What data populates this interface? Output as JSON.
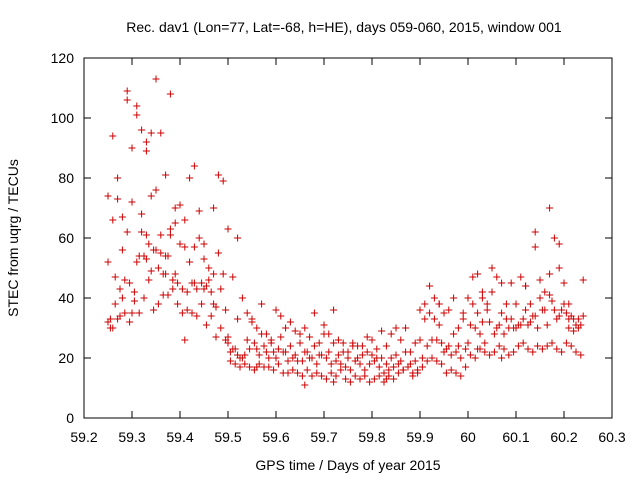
{
  "chart_data": {
    "type": "scatter",
    "title": "Rec. dav1 (Lon=77, Lat=-68, h=HE), days 059-060, 2015, window 001",
    "xlabel": "GPS time / Days of year 2015",
    "ylabel": "STEC from uqrg / TECUs",
    "xlim": [
      59.2,
      60.3
    ],
    "ylim": [
      0,
      120
    ],
    "xticks": [
      59.2,
      59.3,
      59.4,
      59.5,
      59.6,
      59.7,
      59.8,
      59.9,
      60,
      60.1,
      60.2,
      60.3
    ],
    "xtick_labels": [
      "59.2",
      "59.3",
      "59.4",
      "59.5",
      "59.6",
      "59.7",
      "59.8",
      "59.9",
      "60",
      "60.1",
      "60.2",
      "60.3"
    ],
    "yticks": [
      0,
      20,
      40,
      60,
      80,
      100,
      120
    ],
    "ytick_labels": [
      "0",
      "20",
      "40",
      "60",
      "80",
      "100",
      "120"
    ],
    "grid": false,
    "legend": "none",
    "marker": "plus",
    "marker_color": "#cc0000",
    "series": [
      {
        "x": [
          59.25,
          59.26,
          59.27,
          59.28,
          59.29,
          59.3,
          59.31,
          59.32,
          59.33,
          59.34,
          59.35,
          59.36,
          59.37,
          59.38,
          59.39,
          59.4,
          59.41,
          59.42,
          59.43,
          59.44,
          59.45,
          59.46,
          59.47,
          59.48,
          59.49,
          59.5,
          59.51,
          59.52,
          59.53,
          59.54,
          59.55,
          59.56,
          59.57,
          59.58,
          59.59,
          59.6,
          59.61,
          59.62,
          59.63,
          59.64,
          59.65,
          59.66,
          59.67,
          59.68,
          59.69,
          59.7,
          59.71,
          59.72,
          59.73,
          59.74,
          59.75,
          59.76,
          59.77,
          59.78,
          59.79,
          59.8,
          59.81,
          59.82,
          59.83,
          59.84,
          59.85,
          59.86,
          59.87,
          59.88,
          59.89,
          59.9,
          59.91,
          59.92,
          59.93,
          59.94,
          59.95,
          59.96,
          59.97,
          59.98,
          59.99,
          60.0,
          60.01,
          60.02,
          60.03,
          60.04,
          60.05,
          60.06,
          60.07,
          60.08,
          60.09,
          60.1,
          60.11,
          60.12,
          60.13,
          60.14,
          60.15,
          60.16,
          60.17,
          60.18,
          60.19,
          60.2,
          60.21,
          60.22,
          60.23,
          60.24,
          59.25,
          59.26,
          59.27,
          59.28,
          59.29,
          59.3,
          59.31,
          59.32,
          59.33,
          59.34,
          59.35,
          59.36,
          59.37,
          59.38,
          59.39,
          59.4,
          59.41,
          59.42,
          59.43,
          59.44,
          59.45,
          59.46,
          59.47,
          59.48,
          59.49,
          59.5,
          59.51,
          59.52,
          59.53,
          59.54,
          59.55,
          59.56,
          59.57,
          59.58,
          59.59,
          59.6,
          59.61,
          59.62,
          59.63,
          59.64,
          59.65,
          59.66,
          59.67,
          59.68,
          59.69,
          59.7,
          59.71,
          59.72,
          59.73,
          59.74,
          59.75,
          59.76,
          59.77,
          59.78,
          59.79,
          59.8,
          59.81,
          59.82,
          59.83,
          59.84,
          59.85,
          59.86,
          59.87,
          59.88,
          59.89,
          59.9,
          59.91,
          59.92,
          59.93,
          59.94,
          59.95,
          59.96,
          59.97,
          59.98,
          59.99,
          60.0,
          60.01,
          60.02,
          60.03,
          60.04,
          60.05,
          60.06,
          60.07,
          60.08,
          60.09,
          60.1,
          60.11,
          60.12,
          60.13,
          60.14,
          60.15,
          60.16,
          60.17,
          60.18,
          60.19,
          60.2,
          60.21,
          60.22,
          60.23,
          60.24,
          59.255,
          59.265,
          59.275,
          59.285,
          59.295,
          59.305,
          59.315,
          59.325,
          59.335,
          59.345,
          59.355,
          59.365,
          59.375,
          59.385,
          59.395,
          59.405,
          59.415,
          59.425,
          59.435,
          59.445,
          59.455,
          59.465,
          59.475,
          59.485,
          59.495,
          59.505,
          59.515,
          59.525,
          59.535,
          59.545,
          59.555,
          59.565,
          59.575,
          59.585,
          59.595,
          59.605,
          59.615,
          59.625,
          59.635,
          59.645,
          59.655,
          59.665,
          59.675,
          59.685,
          59.695,
          59.705,
          59.715,
          59.725,
          59.735,
          59.745,
          59.755,
          59.765,
          59.775,
          59.785,
          59.795,
          59.805,
          59.815,
          59.825,
          59.835,
          59.845,
          59.855,
          59.865,
          59.875,
          59.885,
          59.895,
          59.905,
          59.915,
          59.925,
          59.935,
          59.945,
          59.955,
          59.965,
          59.975,
          59.985,
          59.995,
          60.005,
          60.015,
          60.025,
          60.035,
          60.045,
          60.055,
          60.065,
          60.075,
          60.085,
          60.095,
          60.105,
          60.115,
          60.125,
          60.135,
          60.145,
          60.155,
          60.165,
          60.175,
          60.185,
          60.195,
          60.205,
          60.215,
          60.225,
          60.235,
          59.255,
          59.265,
          59.275,
          59.285,
          59.295,
          59.305,
          59.315,
          59.325,
          59.335,
          59.345,
          59.355,
          59.365,
          59.375,
          59.385,
          59.395,
          59.405,
          59.415,
          59.425,
          59.435,
          59.445,
          59.455,
          59.465,
          59.475,
          59.485,
          59.495,
          59.505,
          59.515,
          59.525,
          59.535,
          59.545,
          59.555,
          59.565,
          59.575,
          59.585,
          59.595,
          59.605,
          59.615,
          59.625,
          59.635,
          59.645,
          59.655,
          59.665,
          59.675,
          59.685,
          59.695,
          59.705,
          59.715,
          59.725,
          59.735,
          59.745,
          59.755,
          59.765,
          59.775,
          59.785,
          59.795,
          59.805,
          59.815,
          59.825,
          59.835,
          59.845,
          59.855,
          59.865,
          59.875,
          59.885,
          59.895,
          59.905,
          59.915,
          59.925,
          59.935,
          59.945,
          59.955,
          59.965,
          59.975,
          59.985,
          59.995,
          60.005,
          60.015,
          60.025,
          60.035,
          60.045,
          60.055,
          60.065,
          60.075,
          60.085,
          60.095,
          60.105,
          60.115,
          60.125,
          60.135,
          60.145,
          60.155,
          60.165,
          60.175,
          60.185,
          60.195,
          60.205,
          60.215,
          60.225,
          60.235,
          59.29,
          59.31,
          59.33,
          59.35,
          59.37,
          59.39,
          59.32,
          59.36,
          59.34,
          59.38,
          59.33,
          59.3,
          59.28,
          59.27,
          59.26,
          59.41,
          59.43,
          59.45,
          59.47,
          59.5,
          59.52,
          59.56,
          59.25,
          60.17,
          60.19,
          60.14,
          60.21,
          60.12,
          60.03,
          59.94,
          60.02,
          60.07,
          59.83,
          59.66,
          59.72
        ],
        "y": [
          74,
          94,
          80,
          67,
          109,
          90,
          104,
          96,
          92,
          95,
          113,
          95,
          81,
          108,
          65,
          71,
          66,
          80,
          84,
          69,
          58,
          50,
          70,
          81,
          79,
          63,
          47,
          60,
          40,
          35,
          33,
          30,
          38,
          28,
          25,
          36,
          34,
          30,
          32,
          29,
          28,
          30,
          27,
          35,
          25,
          31,
          28,
          36,
          26,
          25,
          22,
          25,
          24,
          21,
          27,
          26,
          23,
          29,
          24,
          28,
          30,
          26,
          30,
          22,
          19,
          36,
          38,
          44,
          40,
          38,
          35,
          36,
          40,
          30,
          33,
          25,
          47,
          48,
          40,
          38,
          50,
          47,
          45,
          38,
          45,
          30,
          47,
          36,
          38,
          62,
          40,
          42,
          70,
          60,
          58,
          45,
          38,
          33,
          30,
          46,
          52,
          66,
          73,
          56,
          62,
          72,
          52,
          62,
          61,
          74,
          56,
          61,
          54,
          61,
          48,
          58,
          57,
          52,
          57,
          60,
          53,
          46,
          48,
          55,
          48,
          25,
          23,
          21,
          20,
          26,
          32,
          23,
          28,
          22,
          26,
          20,
          27,
          22,
          24,
          21,
          25,
          22,
          20,
          24,
          21,
          28,
          22,
          25,
          21,
          22,
          20,
          24,
          20,
          24,
          22,
          21,
          20,
          20,
          18,
          20,
          21,
          19,
          22,
          18,
          25,
          26,
          33,
          35,
          33,
          31,
          22,
          24,
          28,
          24,
          35,
          40,
          38,
          35,
          32,
          36,
          42,
          30,
          35,
          33,
          33,
          38,
          31,
          44,
          32,
          34,
          46,
          36,
          41,
          36,
          50,
          38,
          33,
          29,
          33,
          34,
          33,
          47,
          43,
          46,
          45,
          42,
          54,
          54,
          58,
          56,
          50,
          48,
          54,
          46,
          45,
          43,
          42,
          45,
          43,
          45,
          44,
          42,
          37,
          43,
          36,
          22,
          23,
          20,
          21,
          23,
          25,
          21,
          24,
          20,
          22,
          23,
          22,
          19,
          20,
          19,
          19,
          22,
          20,
          18,
          21,
          20,
          18,
          19,
          18,
          17,
          16,
          19,
          18,
          16,
          18,
          19,
          17,
          15,
          16,
          17,
          18,
          16,
          17,
          15,
          16,
          20,
          24,
          26,
          26,
          25,
          23,
          21,
          22,
          20,
          23,
          31,
          30,
          28,
          25,
          32,
          28,
          31,
          28,
          30,
          30,
          31,
          33,
          31,
          34,
          30,
          36,
          31,
          39,
          33,
          36,
          35,
          34,
          31,
          31,
          30,
          38,
          34,
          35,
          32,
          39,
          35,
          40,
          46,
          36,
          38,
          41,
          41,
          43,
          38,
          35,
          36,
          35,
          34,
          38,
          31,
          34,
          27,
          30,
          26,
          19,
          18,
          17,
          18,
          17,
          16,
          18,
          17,
          17,
          16,
          18,
          15,
          15,
          16,
          15,
          14,
          16,
          14,
          15,
          14,
          13,
          15,
          14,
          16,
          13,
          12,
          14,
          13,
          14,
          12,
          13,
          14,
          12,
          14,
          13,
          15,
          16,
          17,
          14,
          15,
          17,
          19,
          20,
          19,
          18,
          15,
          16,
          15,
          14,
          17,
          21,
          20,
          23,
          22,
          21,
          22,
          24,
          23,
          21,
          22,
          24,
          25,
          23,
          22,
          24,
          23,
          24,
          25,
          23,
          22,
          25,
          24,
          22,
          21,
          106,
          101,
          53,
          76,
          48,
          70,
          68,
          55,
          49,
          63,
          89,
          35,
          40,
          33,
          30,
          26,
          45,
          43,
          38,
          27,
          33,
          17,
          32,
          48,
          34,
          57,
          30,
          44,
          42,
          38,
          23,
          20,
          13,
          11,
          12
        ]
      }
    ]
  }
}
